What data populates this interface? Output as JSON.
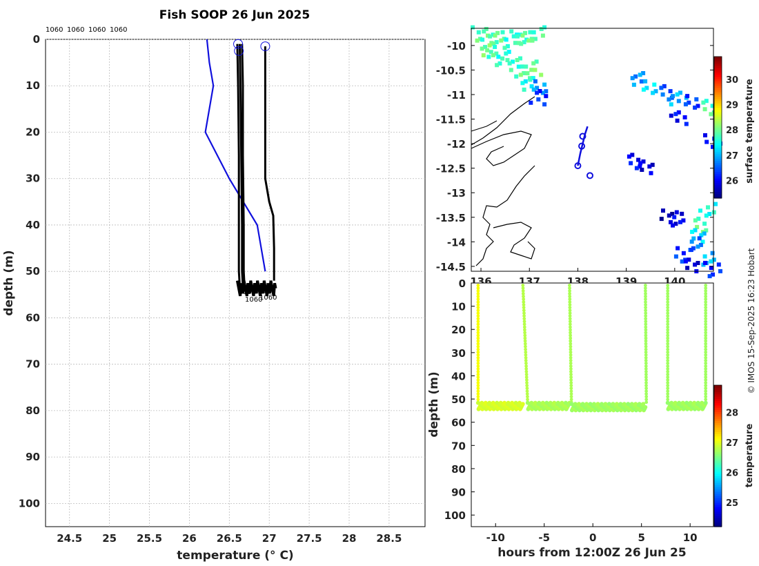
{
  "title": "Fish SOOP 26 Jun 2025",
  "credit": "© IMOS 15-Sep-2025 16:23 Hobart",
  "profile_ids_top": [
    "1060",
    "1060",
    "1060",
    "1060"
  ],
  "profile_ids_bottom": [
    "1060",
    "1060",
    "1060",
    "1060"
  ],
  "colors": {
    "climatology": "#1010dd",
    "profile": "#000000",
    "grid": "#bbbbbb"
  },
  "chart_data": [
    {
      "type": "line",
      "name": "profile-plot",
      "xlabel": "temperature (° C)",
      "ylabel": "depth (m)",
      "xlim": [
        24.2,
        28.95
      ],
      "ylim": [
        105,
        0
      ],
      "xticks": [
        24.5,
        25,
        25.5,
        26,
        26.5,
        27,
        27.5,
        28,
        28.5
      ],
      "xtick_labels": [
        "24.5",
        "25",
        "25.5",
        "26",
        "26.5",
        "27",
        "27.5",
        "28",
        "28.5"
      ],
      "yticks": [
        0,
        10,
        20,
        30,
        40,
        50,
        60,
        70,
        80,
        90,
        100
      ],
      "ytick_labels": [
        "0",
        "10",
        "20",
        "30",
        "40",
        "50",
        "60",
        "70",
        "80",
        "90",
        "100"
      ],
      "series": [
        {
          "name": "climatology",
          "color": "#1010dd",
          "points": [
            [
              26.22,
              0
            ],
            [
              26.25,
              5
            ],
            [
              26.3,
              10
            ],
            [
              26.2,
              20
            ],
            [
              26.5,
              30
            ],
            [
              26.85,
              40
            ],
            [
              26.95,
              50
            ]
          ]
        },
        {
          "name": "profile-1",
          "color": "#000000",
          "points": [
            [
              26.6,
              1
            ],
            [
              26.61,
              10
            ],
            [
              26.62,
              25
            ],
            [
              26.62,
              40
            ],
            [
              26.62,
              50
            ],
            [
              26.63,
              53
            ]
          ]
        },
        {
          "name": "profile-2",
          "color": "#000000",
          "points": [
            [
              26.63,
              1
            ],
            [
              26.64,
              10
            ],
            [
              26.65,
              25
            ],
            [
              26.66,
              40
            ],
            [
              26.66,
              50
            ],
            [
              26.67,
              53
            ]
          ]
        },
        {
          "name": "profile-3",
          "color": "#000000",
          "points": [
            [
              26.66,
              1
            ],
            [
              26.67,
              10
            ],
            [
              26.67,
              25
            ],
            [
              26.68,
              40
            ],
            [
              26.68,
              50
            ],
            [
              26.69,
              53
            ]
          ]
        },
        {
          "name": "profile-4",
          "color": "#000000",
          "points": [
            [
              26.95,
              1.5
            ],
            [
              26.95,
              10
            ],
            [
              26.95,
              30
            ],
            [
              27.0,
              35
            ],
            [
              27.05,
              38
            ],
            [
              27.06,
              45
            ],
            [
              27.06,
              52
            ]
          ]
        }
      ],
      "start_markers": [
        [
          26.61,
          1
        ],
        [
          26.62,
          2.5
        ],
        [
          26.95,
          1.5
        ]
      ]
    },
    {
      "type": "heatmap",
      "name": "sst-map",
      "colorbar_label": "surface temperature",
      "colorbar_ticks": [
        26,
        27,
        28,
        29,
        30
      ],
      "colorbar_range": [
        25.3,
        30.9
      ],
      "xlim": [
        135.8,
        140.8
      ],
      "ylim": [
        -14.6,
        -9.65
      ],
      "xtick_labels": [
        "136",
        "137",
        "138",
        "139",
        "140"
      ],
      "xticks": [
        136,
        137,
        138,
        139,
        140
      ],
      "yticks": [
        -10,
        -10.5,
        -11,
        -11.5,
        -12,
        -12.5,
        -13,
        -13.5,
        -14,
        -14.5
      ],
      "ytick_labels": [
        "-10",
        "-10.5",
        "-11",
        "-11.5",
        "-12",
        "-12.5",
        "-13",
        "-13.5",
        "-14",
        "-14.5"
      ],
      "track": [
        [
          138.2,
          -11.65
        ],
        [
          138.15,
          -11.8
        ],
        [
          138.1,
          -12.0
        ],
        [
          138.05,
          -12.2
        ],
        [
          138.0,
          -12.45
        ]
      ],
      "track_markers": [
        [
          138.1,
          -11.85
        ],
        [
          138.08,
          -12.05
        ],
        [
          138.0,
          -12.45
        ],
        [
          138.25,
          -12.65
        ]
      ],
      "sst_cells": [
        [
          135.9,
          -9.7,
          27.9
        ],
        [
          136.1,
          -9.75,
          27.8
        ],
        [
          136.3,
          -9.8,
          27.9
        ],
        [
          136.5,
          -9.85,
          27.6
        ],
        [
          136.7,
          -9.75,
          27.7
        ],
        [
          136.9,
          -9.8,
          27.9
        ],
        [
          137.1,
          -9.7,
          27.8
        ],
        [
          136.0,
          -10.0,
          28.0
        ],
        [
          136.2,
          -10.1,
          27.8
        ],
        [
          136.4,
          -10.2,
          27.6
        ],
        [
          136.6,
          -10.3,
          27.7
        ],
        [
          136.8,
          -10.5,
          27.9
        ],
        [
          137.0,
          -10.4,
          28.0
        ],
        [
          136.9,
          -10.7,
          27.5
        ],
        [
          137.1,
          -10.8,
          26.8
        ],
        [
          137.1,
          -11.0,
          26.2
        ],
        [
          139.2,
          -10.6,
          26.8
        ],
        [
          139.4,
          -10.8,
          27.2
        ],
        [
          139.7,
          -10.9,
          26.5
        ],
        [
          140.0,
          -11.0,
          27.0
        ],
        [
          140.3,
          -11.1,
          26.3
        ],
        [
          140.6,
          -11.2,
          27.8
        ],
        [
          140.0,
          -11.4,
          26.0
        ],
        [
          140.7,
          -11.9,
          26.1
        ],
        [
          139.1,
          -12.3,
          26.0
        ],
        [
          139.3,
          -12.4,
          25.8
        ],
        [
          140.6,
          -13.3,
          27.5
        ],
        [
          140.5,
          -13.6,
          27.9
        ],
        [
          140.4,
          -13.8,
          27.2
        ],
        [
          140.3,
          -14.0,
          26.6
        ],
        [
          140.1,
          -14.2,
          26.3
        ],
        [
          140.3,
          -14.4,
          25.8
        ],
        [
          140.6,
          -14.3,
          27.0
        ],
        [
          140.7,
          -14.5,
          26.2
        ],
        [
          139.8,
          -13.4,
          25.6
        ],
        [
          140.0,
          -13.5,
          25.9
        ]
      ]
    },
    {
      "type": "scatter",
      "name": "time-depth",
      "xlabel": "hours from 12:00Z 26 Jun 25",
      "ylabel": "depth (m)",
      "colorbar_label": "temperature",
      "colorbar_ticks": [
        25,
        26,
        27,
        28
      ],
      "colorbar_range": [
        24.2,
        28.9
      ],
      "xlim": [
        -12.5,
        12.4
      ],
      "ylim": [
        105,
        0
      ],
      "xticks": [
        -10,
        -5,
        0,
        5,
        10
      ],
      "xtick_labels": [
        "-10",
        "-5",
        "0",
        "5",
        "10"
      ],
      "yticks": [
        0,
        10,
        20,
        30,
        40,
        50,
        60,
        70,
        80,
        90,
        100
      ],
      "ytick_labels": [
        "0",
        "10",
        "20",
        "30",
        "40",
        "50",
        "60",
        "70",
        "80",
        "90",
        "100"
      ],
      "dives": [
        {
          "x_start": -11.8,
          "x_end": -11.8,
          "temp": 27.1
        },
        {
          "x_start": -7.2,
          "x_end": -6.7,
          "temp": 26.8
        },
        {
          "x_start": -2.4,
          "x_end": -2.2,
          "temp": 26.75
        },
        {
          "x_start": 5.4,
          "x_end": 5.5,
          "temp": 26.7
        },
        {
          "x_start": 7.7,
          "x_end": 7.7,
          "temp": 26.7
        },
        {
          "x_start": 11.6,
          "x_end": 11.6,
          "temp": 26.7
        }
      ],
      "bottom_segments": [
        {
          "x_start": -11.8,
          "x_end": -7.2,
          "depth": 53,
          "temp": 26.95
        },
        {
          "x_start": -6.7,
          "x_end": -2.4,
          "depth": 53,
          "temp": 26.75
        },
        {
          "x_start": -2.2,
          "x_end": 5.4,
          "depth": 53.5,
          "temp": 26.7
        },
        {
          "x_start": 7.7,
          "x_end": 11.6,
          "depth": 53,
          "temp": 26.7
        }
      ]
    }
  ]
}
